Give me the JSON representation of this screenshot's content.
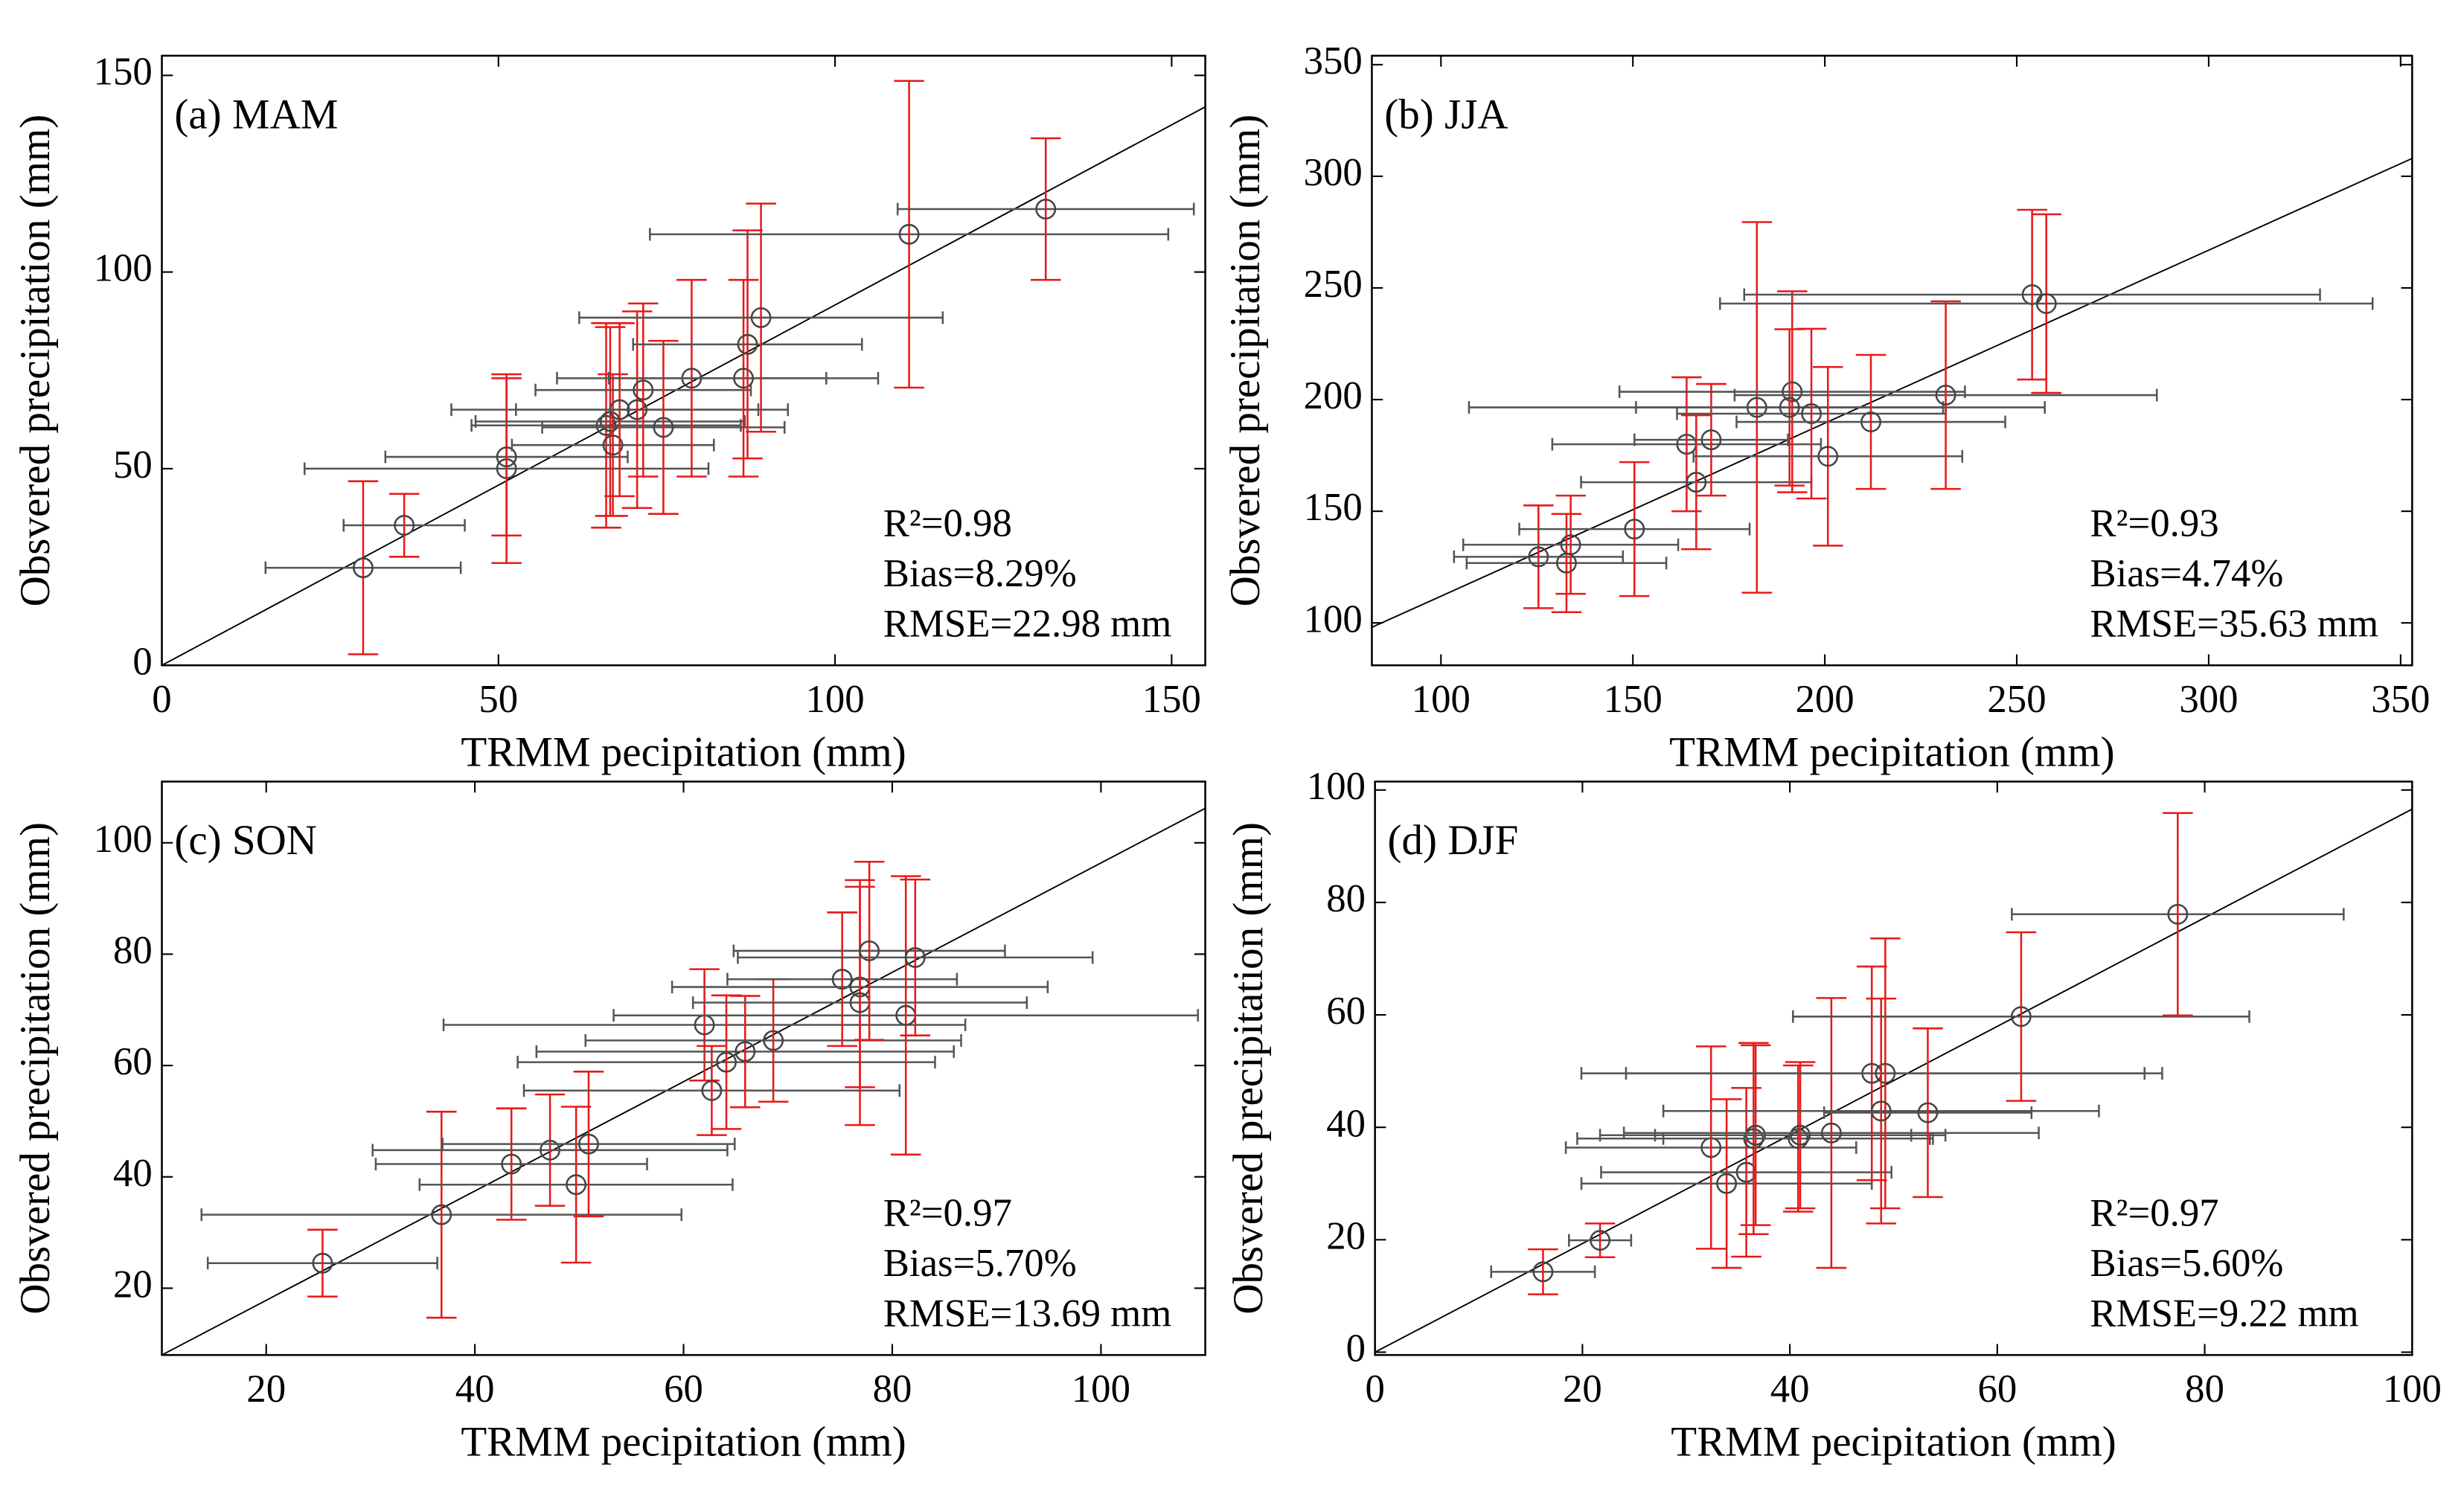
{
  "chart_data": [
    {
      "type": "scatter",
      "title": "(a) MAM",
      "xlabel": "TRMM pecipitation (mm)",
      "ylabel": "Obsvered precipitation (mm)",
      "xlim": [
        0,
        155
      ],
      "ylim": [
        0,
        155
      ],
      "xticks": [
        0,
        50,
        100,
        150
      ],
      "yticks": [
        0,
        50,
        100,
        150
      ],
      "x": [
        29.9,
        36,
        51.2,
        51.2,
        66,
        66.6,
        67,
        68,
        70.6,
        71.5,
        74.5,
        78.7,
        86.4,
        87,
        89,
        111,
        131.3
      ],
      "y": [
        24.8,
        35.6,
        50,
        53,
        61,
        62,
        56,
        65,
        65,
        70,
        60.5,
        73,
        73,
        81.6,
        88.4,
        109.6,
        116
      ],
      "xerr": [
        14.5,
        9,
        30,
        18,
        20,
        20,
        15,
        25,
        18,
        16,
        18,
        20,
        20,
        17,
        27,
        38.5,
        22
      ],
      "yerr": [
        22,
        8,
        24,
        20,
        26,
        24,
        18,
        22,
        25,
        22,
        22,
        25,
        25,
        29,
        29,
        39,
        18
      ],
      "fit_line": {
        "x": [
          0,
          155
        ],
        "y": [
          0,
          142
        ],
        "color": "#000000"
      },
      "point_color": "#444444",
      "xerr_color": "#555555",
      "yerr_color": "#e8191a",
      "annotations": [
        "R²=0.98",
        "Bias=8.29%",
        "RMSE=22.98 mm"
      ]
    },
    {
      "type": "scatter",
      "title": "(b) JJA",
      "xlabel": "TRMM pecipitation (mm)",
      "ylabel": "Obsvered precipitation (mm)",
      "xlim": [
        82,
        353
      ],
      "ylim": [
        81,
        354
      ],
      "xticks": [
        100,
        150,
        200,
        250,
        300,
        350
      ],
      "yticks": [
        100,
        150,
        200,
        250,
        300,
        350
      ],
      "x": [
        125.4,
        132.7,
        133.8,
        150.4,
        164,
        166.5,
        170.4,
        182.3,
        191.5,
        190.8,
        196.5,
        200.8,
        212,
        231.5,
        254,
        257.7
      ],
      "y": [
        129.6,
        126.8,
        135,
        142,
        180,
        163,
        182,
        196.5,
        203.5,
        196.5,
        193.7,
        174.6,
        190,
        202,
        247,
        243
      ],
      "xerr": [
        22,
        26,
        28,
        30,
        35,
        30,
        20,
        75,
        45,
        40,
        35,
        35,
        35,
        55,
        75,
        85
      ],
      "yerr": [
        23,
        22,
        22,
        30,
        30,
        30,
        25,
        83,
        45,
        35,
        38,
        40,
        30,
        42,
        38,
        40
      ],
      "fit_line": {
        "x": [
          82,
          353
        ],
        "y": [
          98,
          308
        ],
        "color": "#000000"
      },
      "point_color": "#444444",
      "xerr_color": "#555555",
      "yerr_color": "#e8191a",
      "annotations": [
        "R²=0.93",
        "Bias=4.74%",
        "RMSE=35.63 mm"
      ]
    },
    {
      "type": "scatter",
      "title": "(c) SON",
      "xlabel": "TRMM pecipitation (mm)",
      "ylabel": "Obsvered precipitation (mm)",
      "xlim": [
        10,
        110
      ],
      "ylim": [
        8,
        111
      ],
      "xticks": [
        20,
        40,
        60,
        80,
        100
      ],
      "yticks": [
        20,
        40,
        60,
        80,
        100
      ],
      "x": [
        25.4,
        36.8,
        43.5,
        47.2,
        49.7,
        50.9,
        62,
        62.7,
        64.1,
        65.9,
        68.6,
        75.2,
        76.9,
        76.9,
        77.8,
        81.3,
        82.2
      ],
      "y": [
        24.5,
        33.2,
        42.3,
        44.8,
        38.6,
        45.9,
        67.3,
        55.5,
        60.6,
        62.5,
        64.5,
        75.5,
        74.1,
        71.3,
        80.6,
        69,
        79.4
      ],
      "xerr": [
        11,
        23,
        13,
        17,
        15,
        14,
        25,
        18,
        20,
        20,
        18,
        11,
        18,
        16,
        13,
        28,
        17
      ],
      "yerr": [
        6,
        18.5,
        10,
        10,
        14,
        13,
        10,
        8,
        12,
        10,
        11,
        12,
        18,
        22,
        16,
        25,
        14
      ],
      "fit_line": {
        "x": [
          10,
          110
        ],
        "y": [
          8,
          106.2
        ],
        "color": "#000000"
      },
      "point_color": "#444444",
      "xerr_color": "#555555",
      "yerr_color": "#e8191a",
      "annotations": [
        "R²=0.97",
        "Bias=5.70%",
        "RMSE=13.69 mm"
      ]
    },
    {
      "type": "scatter",
      "title": "(d) DJF",
      "xlabel": "TRMM pecipitation (mm)",
      "ylabel": "Obsvered precipitation (mm)",
      "xlim": [
        0,
        100
      ],
      "ylim": [
        -0.5,
        101.5
      ],
      "xticks": [
        0,
        20,
        40,
        60,
        80,
        100
      ],
      "yticks": [
        0,
        20,
        40,
        60,
        80,
        100
      ],
      "x": [
        16.2,
        21.7,
        32.4,
        33.9,
        35.8,
        36.5,
        36.7,
        40.8,
        41,
        44,
        47.9,
        49.2,
        48.8,
        53.3,
        62.3,
        77.4
      ],
      "y": [
        14.3,
        19.9,
        36.4,
        30,
        32,
        38,
        38.6,
        38,
        38.6,
        39,
        49.6,
        49.6,
        42.9,
        42.6,
        59.7,
        77.9
      ],
      "xerr": [
        5,
        3,
        14,
        14,
        14,
        17,
        15,
        13,
        14,
        20,
        28,
        25,
        21,
        10,
        22,
        16
      ],
      "yerr": [
        4,
        3,
        18,
        15,
        15,
        17,
        16,
        13,
        13,
        24,
        19,
        24,
        20,
        15,
        15,
        18
      ],
      "fit_line": {
        "x": [
          0,
          100
        ],
        "y": [
          0,
          96.6
        ],
        "color": "#000000"
      },
      "point_color": "#444444",
      "xerr_color": "#555555",
      "yerr_color": "#e8191a",
      "annotations": [
        "R²=0.97",
        "Bias=5.60%",
        "RMSE=9.22 mm"
      ]
    }
  ]
}
